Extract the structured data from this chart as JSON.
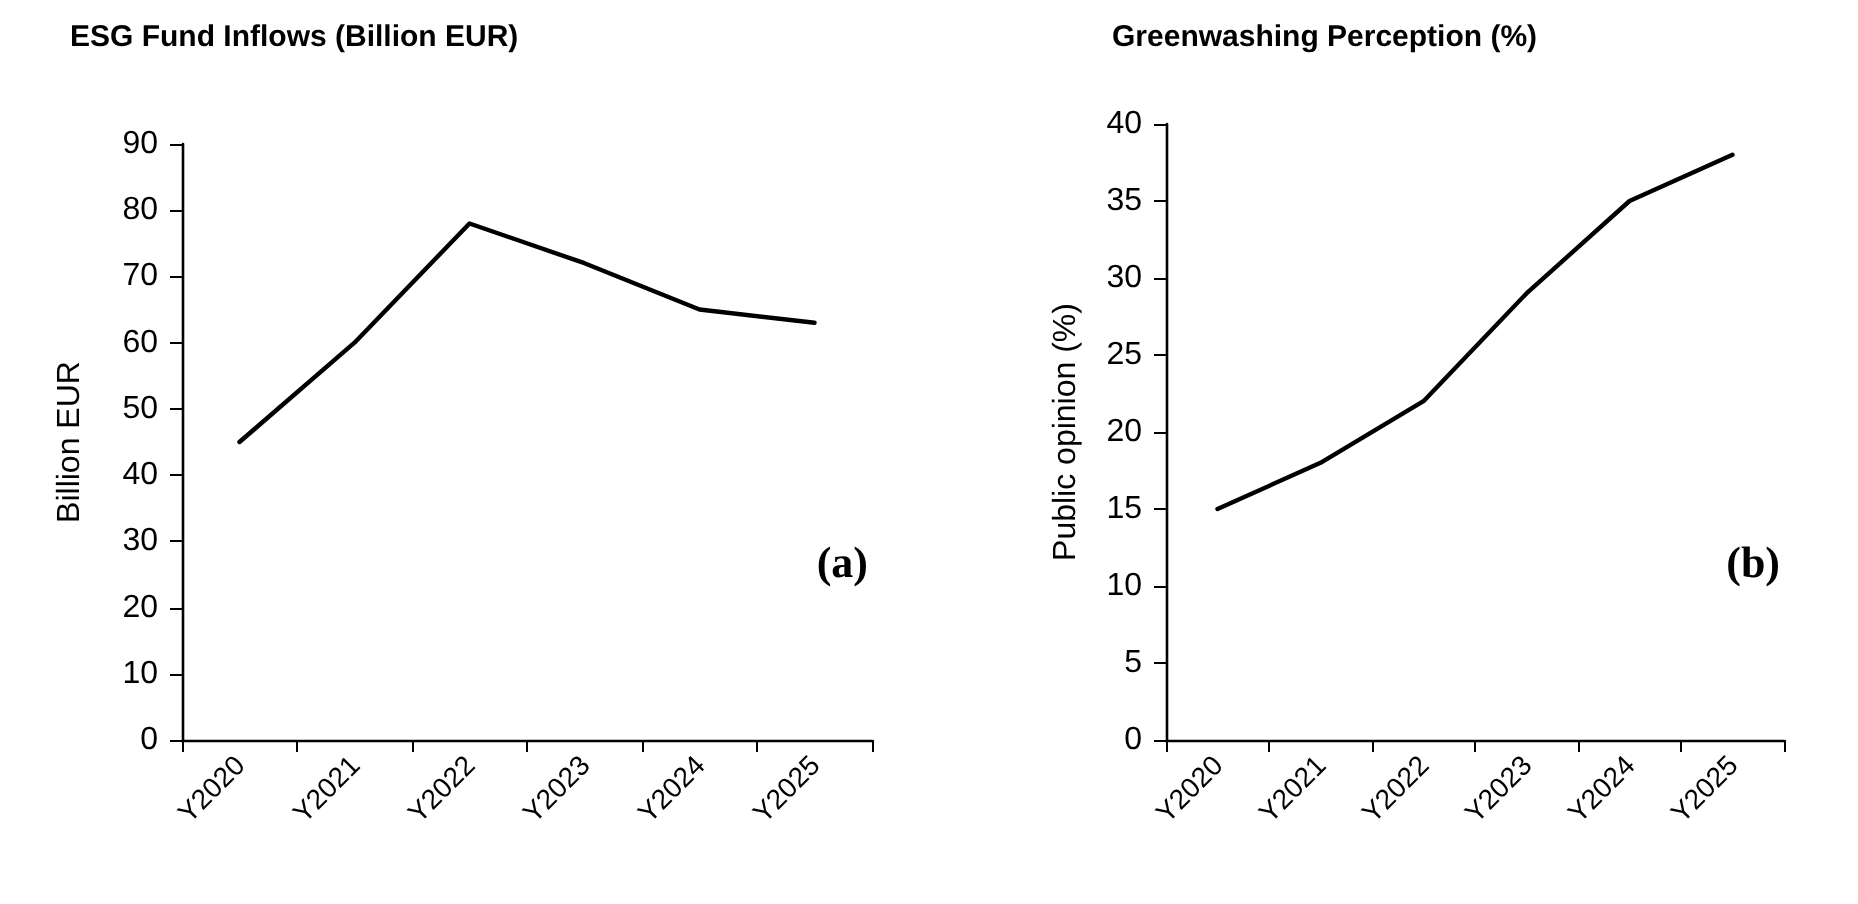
{
  "chart_data": [
    {
      "type": "line",
      "title": "ESG Fund Inflows (Billion EUR)",
      "ylabel": "Billion EUR",
      "annotations": [
        "(a)"
      ],
      "categories": [
        "Y2020",
        "Y2021",
        "Y2022",
        "Y2023",
        "Y2024",
        "Y2025"
      ],
      "series": [
        {
          "color": "#000000",
          "values": [
            45,
            60,
            78,
            72,
            65,
            63
          ]
        }
      ],
      "ylim": [
        0,
        90
      ],
      "yticks": [
        0,
        10,
        20,
        30,
        40,
        50,
        60,
        70,
        80,
        90
      ],
      "grid": false,
      "marker": "none",
      "line_style": "solid"
    },
    {
      "type": "line",
      "title": "Greenwashing Perception (%)",
      "ylabel": "Public opinion (%)",
      "annotations": [
        "(b)"
      ],
      "categories": [
        "Y2020",
        "Y2021",
        "Y2022",
        "Y2023",
        "Y2024",
        "Y2025"
      ],
      "series": [
        {
          "color": "#000000",
          "values": [
            15,
            18,
            22,
            29,
            35,
            38
          ]
        }
      ],
      "ylim": [
        0,
        40
      ],
      "yticks": [
        0,
        5,
        10,
        15,
        20,
        25,
        30,
        35,
        40
      ],
      "grid": false,
      "marker": "none",
      "line_style": "solid"
    }
  ]
}
